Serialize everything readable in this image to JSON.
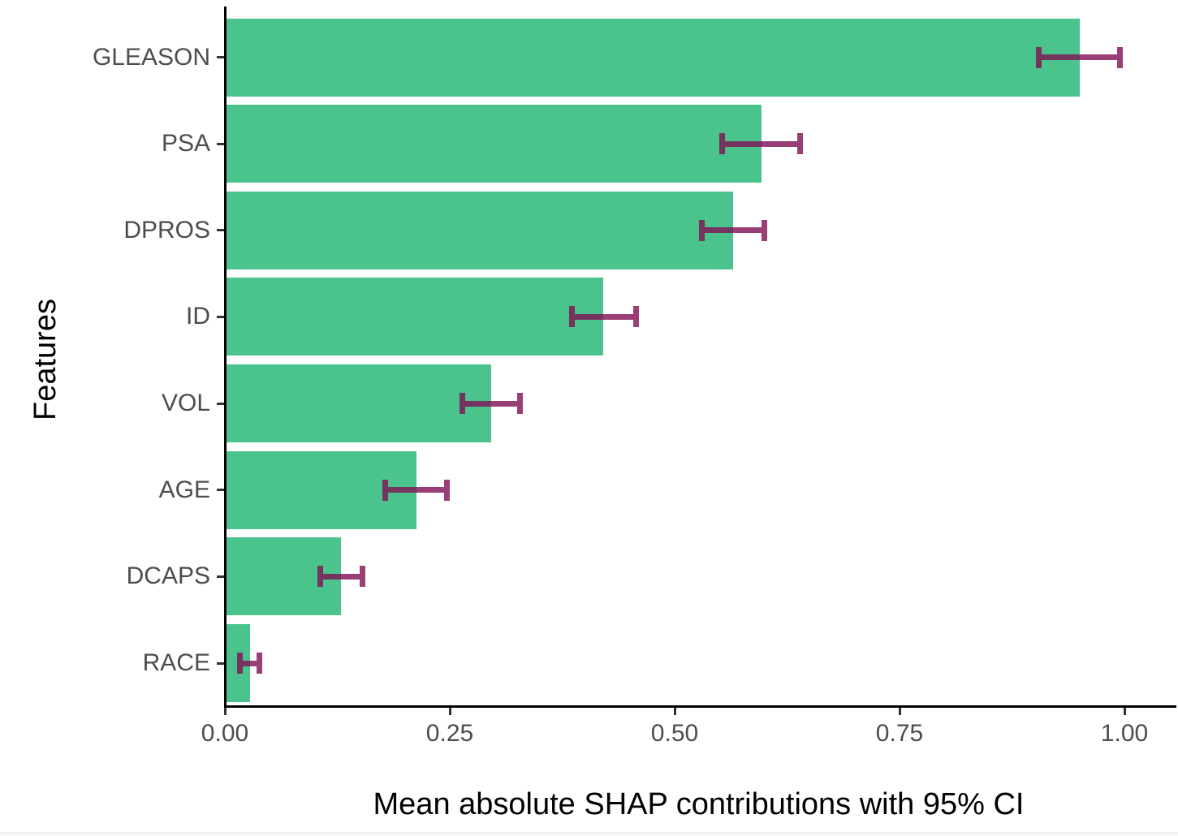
{
  "chart_data": {
    "type": "bar",
    "orientation": "horizontal",
    "xlabel": "Mean absolute SHAP contributions with 95% CI",
    "ylabel": "Features",
    "categories": [
      "GLEASON",
      "PSA",
      "DPROS",
      "ID",
      "VOL",
      "AGE",
      "DCAPS",
      "RACE"
    ],
    "values": [
      0.95,
      0.597,
      0.565,
      0.421,
      0.296,
      0.213,
      0.129,
      0.028
    ],
    "ci_low": [
      0.905,
      0.553,
      0.53,
      0.386,
      0.264,
      0.178,
      0.106,
      0.017
    ],
    "ci_high": [
      0.995,
      0.639,
      0.6,
      0.457,
      0.328,
      0.247,
      0.153,
      0.038
    ],
    "xlim": [
      0,
      1.05
    ],
    "x_ticks": [
      0,
      0.25,
      0.5,
      0.75,
      1.0
    ],
    "x_tick_labels": [
      "0.00",
      "0.25",
      "0.50",
      "0.75",
      "1.00"
    ],
    "grid": "off",
    "legend": "none",
    "bar_color": "#4AC48C",
    "errorbar_color": "#801055",
    "errorbar_opacity": 0.8,
    "axis_color": "#000000",
    "tick_color": "#333333",
    "tick_label_color": "#4d4d4d",
    "title_color": "#000000",
    "background_color": "#ffffff"
  }
}
